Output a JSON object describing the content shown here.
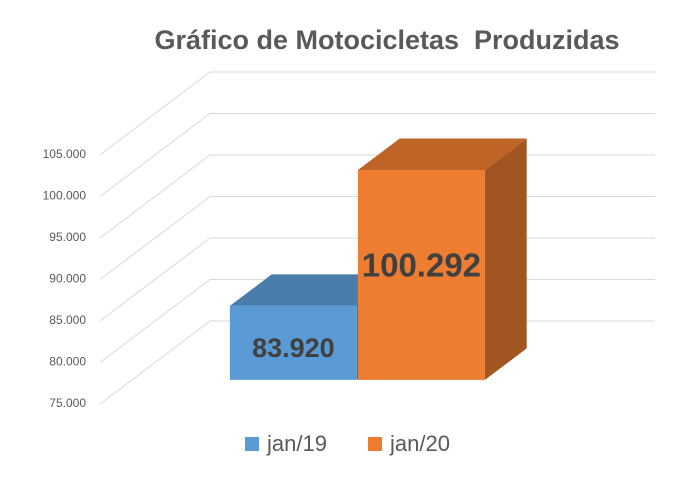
{
  "chart_data": {
    "type": "bar",
    "title": "Gráfico de Motocicletas  Produzidas",
    "series": [
      {
        "name": "jan/19",
        "color": "#5b9bd5",
        "values": [
          83920
        ],
        "value_labels": [
          "83.920"
        ]
      },
      {
        "name": "jan/20",
        "color": "#ed7d31",
        "values": [
          100292
        ],
        "value_labels": [
          "100.292"
        ]
      }
    ],
    "ylim": [
      75000,
      105000
    ],
    "yticks": [
      {
        "value": 75000,
        "label": "75.000"
      },
      {
        "value": 80000,
        "label": "80.000"
      },
      {
        "value": 85000,
        "label": "85.000"
      },
      {
        "value": 90000,
        "label": "90.000"
      },
      {
        "value": 95000,
        "label": "95.000"
      },
      {
        "value": 100000,
        "label": "100.000"
      },
      {
        "value": 105000,
        "label": "105.000"
      }
    ],
    "grid": true,
    "legend": "bottom"
  }
}
